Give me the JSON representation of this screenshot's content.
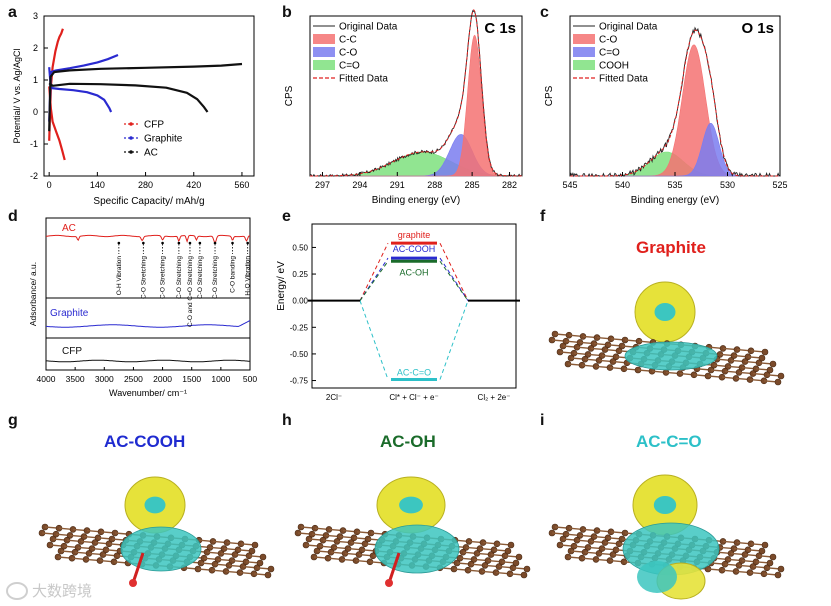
{
  "panel_labels": {
    "a": "a",
    "b": "b",
    "c": "c",
    "d": "d",
    "e": "e",
    "f": "f",
    "g": "g",
    "h": "h",
    "i": "i"
  },
  "watermark": "大数跨境",
  "chart_data": [
    {
      "id": "a",
      "type": "line",
      "xlabel": "Specific Capacity/ mAh/g",
      "ylabel": "Potential/ V vs. Ag/AgCl",
      "xticks": [
        0,
        140,
        280,
        420,
        560
      ],
      "yticks": [
        -2,
        -1,
        0,
        1,
        2,
        3
      ],
      "xlim": [
        -15,
        595
      ],
      "ylim": [
        -2,
        3
      ],
      "legend": [
        "CFP",
        "Graphite",
        "AC"
      ],
      "colors": {
        "CFP": "#e0201c",
        "Graphite": "#2a2ad0",
        "AC": "#111111"
      },
      "series": [
        {
          "name": "CFP-charge",
          "legend": "CFP",
          "x": [
            0,
            5,
            10,
            18,
            25,
            30,
            35,
            40
          ],
          "y": [
            -0.9,
            0.8,
            1.4,
            1.9,
            2.2,
            2.35,
            2.45,
            2.6
          ]
        },
        {
          "name": "CFP-discharge",
          "legend": "CFP",
          "x": [
            0,
            5,
            10,
            20,
            30,
            38,
            45
          ],
          "y": [
            0.8,
            0.1,
            -0.3,
            -0.6,
            -0.9,
            -1.2,
            -1.5
          ]
        },
        {
          "name": "Graphite-charge",
          "legend": "Graphite",
          "x": [
            0,
            5,
            20,
            60,
            100,
            140,
            170,
            200
          ],
          "y": [
            -0.3,
            1.25,
            1.3,
            1.37,
            1.45,
            1.55,
            1.65,
            1.78
          ]
        },
        {
          "name": "Graphite-discharge",
          "legend": "Graphite",
          "x": [
            0,
            5,
            30,
            70,
            110,
            140,
            160,
            175,
            180
          ],
          "y": [
            1.4,
            0.75,
            0.72,
            0.68,
            0.62,
            0.52,
            0.38,
            0.12,
            0.0
          ]
        },
        {
          "name": "AC-charge",
          "legend": "AC",
          "x": [
            0,
            4,
            15,
            60,
            150,
            280,
            420,
            500,
            560
          ],
          "y": [
            -0.6,
            1.1,
            1.25,
            1.3,
            1.35,
            1.38,
            1.42,
            1.45,
            1.5
          ]
        },
        {
          "name": "AC-discharge",
          "legend": "AC",
          "x": [
            0,
            10,
            60,
            150,
            250,
            340,
            400,
            430,
            450,
            460
          ],
          "y": [
            0.9,
            0.82,
            0.88,
            0.87,
            0.83,
            0.76,
            0.6,
            0.4,
            0.15,
            0.0
          ]
        }
      ]
    },
    {
      "id": "b",
      "type": "area",
      "title": "C 1s",
      "xlabel": "Binding energy (eV)",
      "ylabel": "CPS",
      "xticks": [
        297,
        294,
        291,
        288,
        285,
        282
      ],
      "xlim": [
        298,
        281
      ],
      "legend": [
        "Original Data",
        "C-C",
        "C-O",
        "C=O",
        "Fitted Data"
      ],
      "components": [
        {
          "name": "C-C",
          "center": 284.8,
          "sigma": 0.55,
          "amp": 0.88,
          "color": "#f47272"
        },
        {
          "name": "C-O",
          "center": 285.9,
          "sigma": 0.9,
          "amp": 0.26,
          "color": "#7a7cf0"
        },
        {
          "name": "C=O",
          "center": 289.0,
          "sigma": 2.3,
          "amp": 0.15,
          "color": "#7ee07e"
        }
      ]
    },
    {
      "id": "c",
      "type": "area",
      "title": "O 1s",
      "xlabel": "Binding energy (eV)",
      "ylabel": "CPS",
      "xticks": [
        545,
        540,
        535,
        530,
        525
      ],
      "xlim": [
        545,
        525
      ],
      "legend": [
        "Original Data",
        "C-O",
        "C=O",
        "COOH",
        "Fitted Data"
      ],
      "components": [
        {
          "name": "C-O",
          "center": 533.2,
          "sigma": 1.1,
          "amp": 0.82,
          "color": "#f47272"
        },
        {
          "name": "C=O",
          "center": 531.6,
          "sigma": 0.8,
          "amp": 0.33,
          "color": "#7a7cf0"
        },
        {
          "name": "COOH",
          "center": 535.8,
          "sigma": 1.6,
          "amp": 0.15,
          "color": "#7ee07e"
        }
      ]
    },
    {
      "id": "d",
      "type": "line",
      "xlabel": "Wavenumber/ cm⁻¹",
      "ylabel": "Adsorbance/ a.u.",
      "xticks": [
        4000,
        3500,
        3000,
        2500,
        2000,
        1500,
        1000,
        500
      ],
      "xlim": [
        4000,
        500
      ],
      "series_labels": [
        "AC",
        "Graphite",
        "CFP"
      ],
      "colors": {
        "AC": "#e0201c",
        "Graphite": "#2a2ad0",
        "CFP": "#111111"
      },
      "annotations": [
        "O-H Vibration",
        "C-O Stretching",
        "C-O Stretching",
        "C-O Stretching",
        "C-O and C=O Stretching",
        "C-O Stretching",
        "C-O Stretching",
        "C-O banding",
        "H₂O Vibration"
      ]
    },
    {
      "id": "e",
      "type": "line",
      "ylabel": "Energy/ eV",
      "categories": [
        "2Cl⁻",
        "Cl* + Cl⁻ + e⁻",
        "Cl₂ + 2e⁻"
      ],
      "yticks": [
        0.5,
        0.25,
        0.0,
        -0.25,
        -0.5,
        -0.75
      ],
      "ytick_labels": [
        "0.50",
        "0.25",
        "0.00",
        "-0.25",
        "-0.50",
        "-0.75"
      ],
      "ylim": [
        -0.82,
        0.72
      ],
      "series": [
        {
          "name": "graphite",
          "values": [
            0,
            0.54,
            0
          ],
          "color": "#e0201c"
        },
        {
          "name": "AC-COOH",
          "values": [
            0,
            0.4,
            0
          ],
          "color": "#2a2ad0"
        },
        {
          "name": "AC-OH",
          "values": [
            0,
            0.37,
            0
          ],
          "color": "#1a6b2a"
        },
        {
          "name": "AC-C=O",
          "values": [
            0,
            -0.74,
            0
          ],
          "color": "#2cc0c8"
        }
      ]
    }
  ],
  "molecules": {
    "f": {
      "title": "Graphite",
      "color": "#e0201c"
    },
    "g": {
      "title": "AC-COOH",
      "color": "#1f2bd0"
    },
    "h": {
      "title": "AC-OH",
      "color": "#1a6b2a"
    },
    "i": {
      "title": "AC-C=O",
      "color": "#2cc0c8"
    }
  }
}
